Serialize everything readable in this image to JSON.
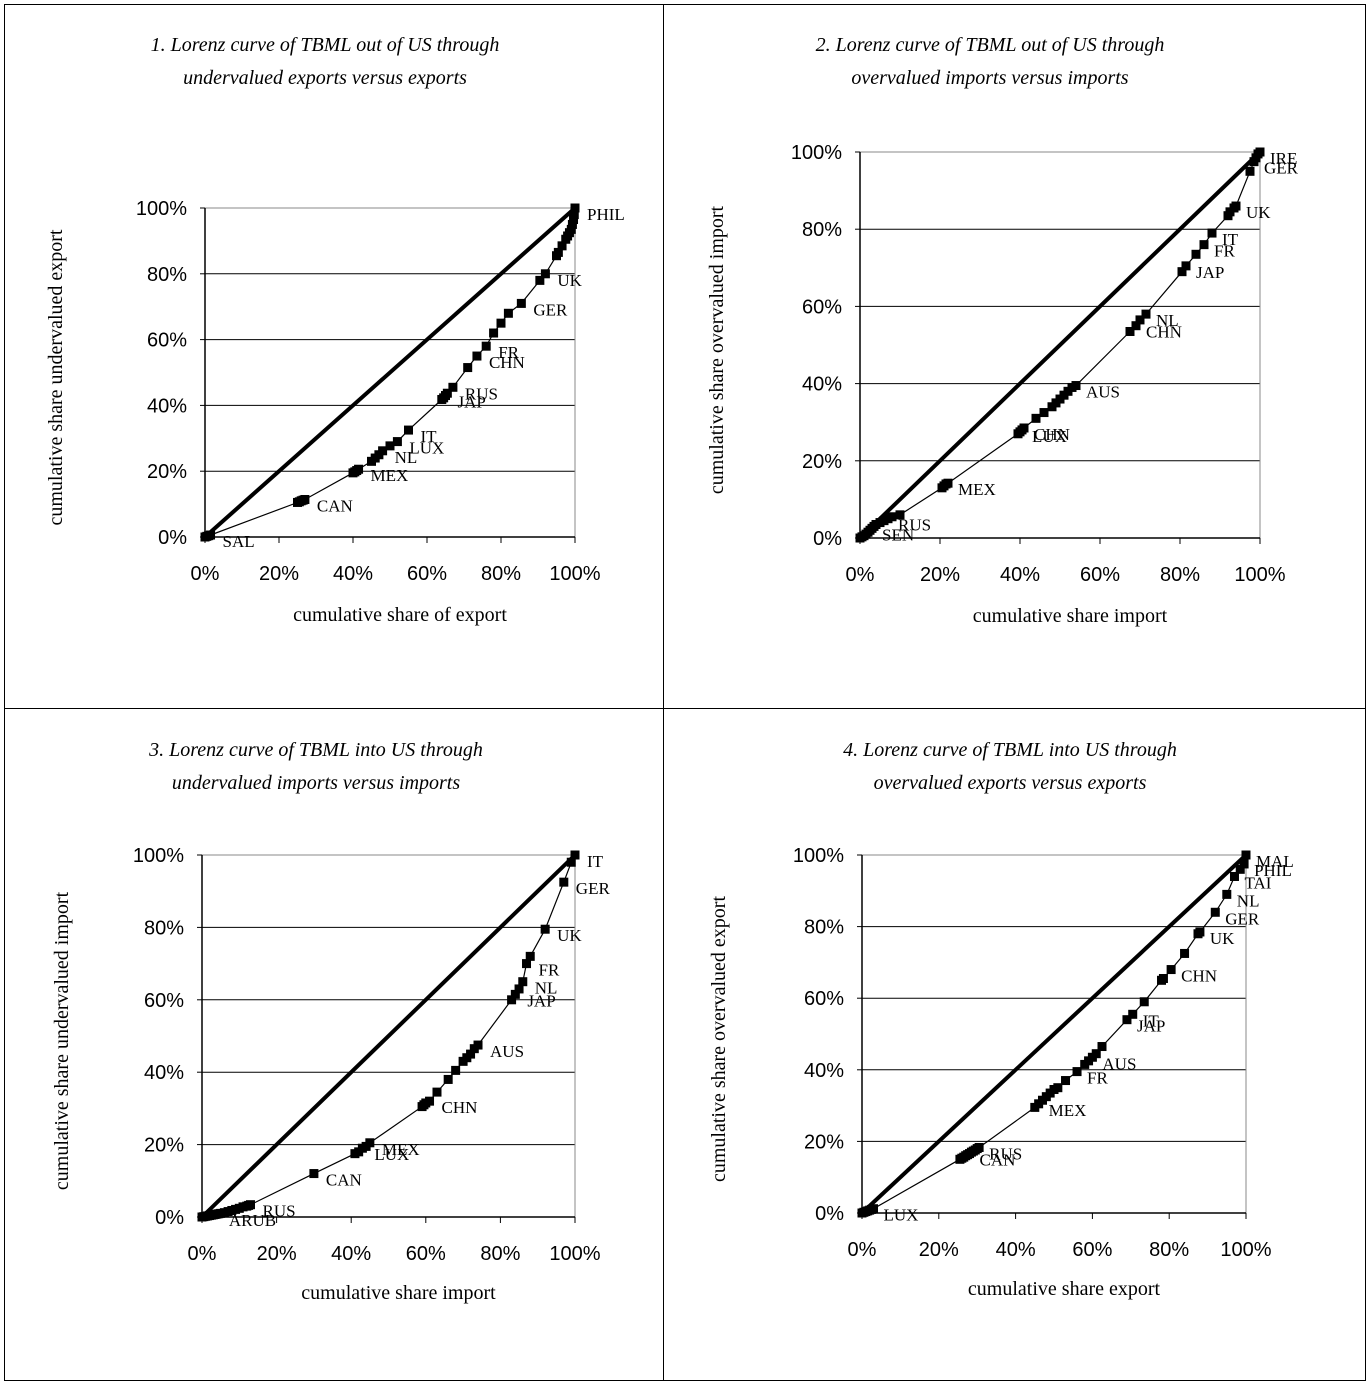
{
  "chart_data": [
    {
      "type": "line",
      "title": [
        "1. Lorenz curve of TBML out of US through",
        "undervalued exports versus exports"
      ],
      "xlabel": "cumulative share of export",
      "ylabel": "cumulative share undervalued export",
      "xlim": [
        0,
        100
      ],
      "ylim": [
        0,
        100
      ],
      "xticks": [
        "0%",
        "20%",
        "40%",
        "60%",
        "80%",
        "100%"
      ],
      "yticks": [
        "0%",
        "20%",
        "40%",
        "60%",
        "80%",
        "100%"
      ],
      "grid": "horizontal",
      "equality_line": true,
      "series": [
        {
          "x": [
            0,
            0.5,
            1,
            1.5,
            25,
            25.5,
            26,
            26.5,
            27,
            40,
            40.5,
            41,
            41.5,
            45,
            46,
            47,
            48,
            50,
            52,
            55,
            64,
            64.5,
            65,
            65.5,
            67,
            71,
            73.5,
            76,
            78,
            80,
            82,
            85.5,
            90.5,
            92,
            95,
            95.5,
            96.5,
            97.5,
            98,
            98.5,
            99,
            99.3,
            99.6,
            99.8,
            100
          ],
          "y": [
            0,
            0.2,
            0.4,
            0.6,
            10.5,
            10.7,
            11,
            11.2,
            11.4,
            19.5,
            19.8,
            20.2,
            20.6,
            23,
            24,
            25,
            26.2,
            27.7,
            29,
            32.5,
            41.8,
            42.3,
            43,
            43.7,
            45.5,
            51.5,
            55,
            58,
            62,
            65,
            68,
            71,
            78,
            80,
            85.5,
            86.5,
            88.5,
            90.5,
            91.5,
            92.5,
            93.5,
            95,
            96.5,
            98,
            100
          ]
        }
      ],
      "labels": [
        {
          "text": "PHIL",
          "x": 100,
          "y": 100
        },
        {
          "text": "UK",
          "x": 92,
          "y": 80
        },
        {
          "text": "GER",
          "x": 85.5,
          "y": 71
        },
        {
          "text": "FR",
          "x": 76,
          "y": 58
        },
        {
          "text": "CHN",
          "x": 73.5,
          "y": 55
        },
        {
          "text": "RUS",
          "x": 67,
          "y": 45.5
        },
        {
          "text": "JAP",
          "x": 65,
          "y": 43
        },
        {
          "text": "IT",
          "x": 55,
          "y": 32.5
        },
        {
          "text": "LUX",
          "x": 52,
          "y": 29
        },
        {
          "text": "NL",
          "x": 48,
          "y": 26.2
        },
        {
          "text": "MEX",
          "x": 41.5,
          "y": 20.6
        },
        {
          "text": "CAN",
          "x": 27,
          "y": 11.4
        },
        {
          "text": "SAL",
          "x": 1.5,
          "y": 0.6
        }
      ]
    },
    {
      "type": "line",
      "title": [
        "2. Lorenz curve of TBML out of US through",
        "overvalued imports versus imports"
      ],
      "xlabel": "cumulative share import",
      "ylabel": "cumulative share overvalued import",
      "xlim": [
        0,
        100
      ],
      "ylim": [
        0,
        100
      ],
      "xticks": [
        "0%",
        "20%",
        "40%",
        "60%",
        "80%",
        "100%"
      ],
      "yticks": [
        "0%",
        "20%",
        "40%",
        "60%",
        "80%",
        "100%"
      ],
      "grid": "horizontal",
      "equality_line": true,
      "series": [
        {
          "x": [
            0,
            0.5,
            1,
            1.5,
            2,
            2.5,
            3,
            3.5,
            4,
            5,
            6,
            7,
            8,
            10,
            20.5,
            21,
            21.5,
            22,
            39.5,
            40,
            40.5,
            41,
            44,
            46,
            48,
            49,
            50,
            51,
            52,
            53,
            54,
            67.5,
            69,
            70,
            71.5,
            80.5,
            81.5,
            84,
            86,
            88,
            92,
            92.5,
            93.5,
            94,
            97.5,
            98.5,
            99,
            99.5,
            100
          ],
          "y": [
            0,
            0.3,
            0.6,
            1,
            1.5,
            2,
            2.5,
            3,
            3.5,
            4,
            4.5,
            5,
            5.5,
            6,
            13,
            13.5,
            14,
            14.2,
            27,
            27.5,
            28,
            28.5,
            31,
            32.5,
            34,
            35,
            36,
            37,
            38,
            39,
            39.5,
            53.5,
            55,
            56.5,
            58,
            69,
            70.5,
            73.5,
            76,
            79,
            83.5,
            84.5,
            85.5,
            86,
            95,
            97.5,
            98.5,
            99.5,
            100
          ]
        }
      ],
      "labels": [
        {
          "text": "IRE",
          "x": 100,
          "y": 100
        },
        {
          "text": "GER",
          "x": 98.5,
          "y": 97.5
        },
        {
          "text": "UK",
          "x": 94,
          "y": 86
        },
        {
          "text": "IT",
          "x": 88,
          "y": 79
        },
        {
          "text": "FR",
          "x": 86,
          "y": 76
        },
        {
          "text": "JAP",
          "x": 81.5,
          "y": 70.5
        },
        {
          "text": "NL",
          "x": 71.5,
          "y": 58
        },
        {
          "text": "CHN",
          "x": 69,
          "y": 55
        },
        {
          "text": "AUS",
          "x": 54,
          "y": 39.5
        },
        {
          "text": "CHN",
          "x": 41,
          "y": 28.5
        },
        {
          "text": "LUX",
          "x": 40.5,
          "y": 28
        },
        {
          "text": "MEX",
          "x": 22,
          "y": 14.2
        },
        {
          "text": "RUS",
          "x": 7,
          "y": 5
        },
        {
          "text": "SEN",
          "x": 3,
          "y": 2.5
        }
      ]
    },
    {
      "type": "line",
      "title": [
        "3. Lorenz curve of TBML into US through",
        "undervalued imports versus imports"
      ],
      "xlabel": "cumulative share import",
      "ylabel": "cumulative share undervalued import",
      "xlim": [
        0,
        100
      ],
      "ylim": [
        0,
        100
      ],
      "xticks": [
        "0%",
        "20%",
        "40%",
        "60%",
        "80%",
        "100%"
      ],
      "yticks": [
        "0%",
        "20%",
        "40%",
        "60%",
        "80%",
        "100%"
      ],
      "grid": "horizontal",
      "equality_line": true,
      "series": [
        {
          "x": [
            0,
            0.5,
            1,
            1.5,
            2,
            2.5,
            3,
            3.5,
            4,
            4.5,
            5,
            6,
            7,
            8,
            9,
            10,
            11,
            12,
            12.5,
            13,
            30,
            41,
            42,
            43,
            44,
            45,
            59,
            59.5,
            60,
            61,
            63,
            66,
            68,
            70,
            71,
            72,
            73,
            74,
            83,
            84,
            85,
            86,
            87,
            88,
            92,
            97,
            99,
            100
          ],
          "y": [
            0,
            0.1,
            0.2,
            0.3,
            0.4,
            0.5,
            0.6,
            0.7,
            0.8,
            0.9,
            1,
            1.2,
            1.5,
            1.8,
            2.1,
            2.4,
            2.8,
            3,
            3.2,
            3.4,
            12,
            17.5,
            18,
            19,
            19.5,
            20.5,
            30.5,
            31,
            31.5,
            32,
            34.5,
            38,
            40.5,
            43,
            44,
            45,
            46.5,
            47.5,
            60,
            61.5,
            63,
            65,
            70,
            72,
            79.5,
            92.5,
            98,
            100
          ]
        }
      ],
      "labels": [
        {
          "text": "IT",
          "x": 100,
          "y": 100
        },
        {
          "text": "GER",
          "x": 97,
          "y": 92.5
        },
        {
          "text": "UK",
          "x": 92,
          "y": 79.5
        },
        {
          "text": "FR",
          "x": 87,
          "y": 70
        },
        {
          "text": "NL",
          "x": 86,
          "y": 65
        },
        {
          "text": "JAP",
          "x": 84,
          "y": 61.5
        },
        {
          "text": "AUS",
          "x": 74,
          "y": 47.5
        },
        {
          "text": "CHN",
          "x": 61,
          "y": 32
        },
        {
          "text": "MEX",
          "x": 45,
          "y": 20.5
        },
        {
          "text": "LUX",
          "x": 43,
          "y": 19
        },
        {
          "text": "CAN",
          "x": 30,
          "y": 12
        },
        {
          "text": "RUS",
          "x": 13,
          "y": 3.4
        },
        {
          "text": "ARUB",
          "x": 4,
          "y": 0.8
        }
      ]
    },
    {
      "type": "line",
      "title": [
        "4. Lorenz curve of TBML into US through",
        "overvalued exports versus exports"
      ],
      "xlabel": "cumulative share export",
      "ylabel": "cumulative share overvalued export",
      "xlim": [
        0,
        100
      ],
      "ylim": [
        0,
        100
      ],
      "xticks": [
        "0%",
        "20%",
        "40%",
        "60%",
        "80%",
        "100%"
      ],
      "yticks": [
        "0%",
        "20%",
        "40%",
        "60%",
        "80%",
        "100%"
      ],
      "grid": "horizontal",
      "equality_line": true,
      "series": [
        {
          "x": [
            0,
            0.5,
            1,
            1.5,
            2,
            2.5,
            3,
            25.5,
            26,
            26.5,
            27,
            27.5,
            28,
            28.5,
            29,
            29.5,
            30,
            30.5,
            45,
            46,
            47,
            48,
            49,
            50,
            51,
            53,
            56,
            58,
            59,
            60,
            61,
            62.5,
            69,
            70.5,
            73.5,
            78,
            78.5,
            80.5,
            84,
            87.5,
            88,
            92,
            95,
            97,
            98.5,
            99.5,
            100
          ],
          "y": [
            0,
            0.2,
            0.4,
            0.6,
            0.8,
            1,
            1.2,
            15,
            15.3,
            15.6,
            16,
            16.3,
            16.6,
            17,
            17.3,
            17.6,
            18,
            18.3,
            29.5,
            30.5,
            31.5,
            32.5,
            33.5,
            34.5,
            35,
            37,
            39.5,
            41.5,
            42.5,
            43.5,
            44.5,
            46.5,
            54,
            55.5,
            59,
            65,
            65.5,
            68,
            72.5,
            78,
            78.5,
            84,
            89,
            94,
            96,
            97.5,
            100
          ]
        }
      ],
      "labels": [
        {
          "text": "MAL",
          "x": 100,
          "y": 100
        },
        {
          "text": "PHIL",
          "x": 99.5,
          "y": 97.5
        },
        {
          "text": "TAI",
          "x": 97,
          "y": 94
        },
        {
          "text": "NL",
          "x": 95,
          "y": 89
        },
        {
          "text": "GER",
          "x": 92,
          "y": 84
        },
        {
          "text": "UK",
          "x": 88,
          "y": 78.5
        },
        {
          "text": "CHN",
          "x": 80.5,
          "y": 68
        },
        {
          "text": "IT",
          "x": 70.5,
          "y": 55.5
        },
        {
          "text": "JAP",
          "x": 69,
          "y": 54
        },
        {
          "text": "AUS",
          "x": 60,
          "y": 43.5
        },
        {
          "text": "FR",
          "x": 56,
          "y": 39.5
        },
        {
          "text": "MEX",
          "x": 46,
          "y": 30.5
        },
        {
          "text": "RUS",
          "x": 30.5,
          "y": 18.3
        },
        {
          "text": "CAN",
          "x": 28,
          "y": 16.6
        },
        {
          "text": "LUX",
          "x": 3,
          "y": 1.2
        }
      ]
    }
  ]
}
